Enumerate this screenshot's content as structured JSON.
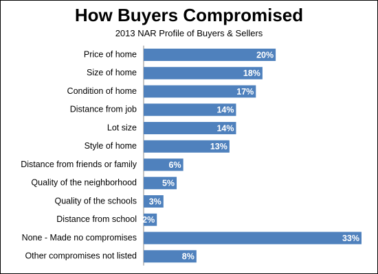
{
  "chart_data": {
    "type": "bar",
    "orientation": "horizontal",
    "title": "How Buyers Compromised",
    "subtitle": "2013 NAR Profile of Buyers & Sellers",
    "categories": [
      "Price of home",
      "Size of home",
      "Condition of home",
      "Distance from job",
      "Lot size",
      "Style of home",
      "Distance from friends or family",
      "Quality of the neighborhood",
      "Quality of the schools",
      "Distance from school",
      "None - Made no compromises",
      "Other compromises not listed"
    ],
    "values": [
      20,
      18,
      17,
      14,
      14,
      13,
      6,
      5,
      3,
      2,
      33,
      8
    ],
    "value_labels": [
      "20%",
      "18%",
      "17%",
      "14%",
      "14%",
      "13%",
      "6%",
      "5%",
      "3%",
      "2%",
      "33%",
      "8%"
    ],
    "unit": "%",
    "xlim": [
      0,
      33
    ],
    "grid": false,
    "bar_color": "#4f81bd",
    "label_color": "#ffffff"
  }
}
